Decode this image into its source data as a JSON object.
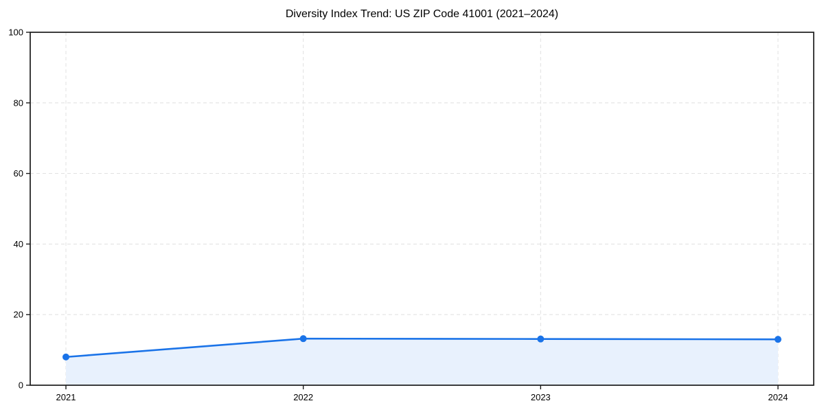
{
  "chart_data": {
    "type": "line",
    "title": "Diversity Index Trend: US ZIP Code 41001 (2021–2024)",
    "categories": [
      "2021",
      "2022",
      "2023",
      "2024"
    ],
    "series": [
      {
        "name": "Diversity Index",
        "values": [
          8,
          13.2,
          13.1,
          13
        ]
      }
    ],
    "xlabel": "",
    "ylabel": "",
    "ylim": [
      0,
      100
    ],
    "yticks": [
      0,
      20,
      40,
      60,
      80,
      100
    ],
    "grid": "dashed",
    "legend_position": "none",
    "colors": {
      "line": "#1a73e8",
      "marker": "#1a73e8",
      "area_fill": "#e8f1fd",
      "grid": "#e3e3e3",
      "axis_border": "#1a1a1a",
      "tick_text": "#000000",
      "background": "#ffffff"
    }
  }
}
